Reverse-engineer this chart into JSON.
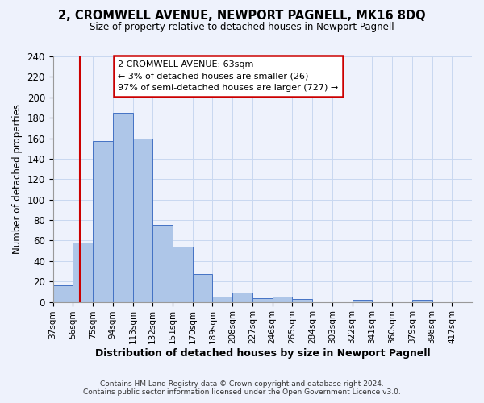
{
  "title": "2, CROMWELL AVENUE, NEWPORT PAGNELL, MK16 8DQ",
  "subtitle": "Size of property relative to detached houses in Newport Pagnell",
  "xlabel": "Distribution of detached houses by size in Newport Pagnell",
  "ylabel": "Number of detached properties",
  "bin_labels": [
    "37sqm",
    "56sqm",
    "75sqm",
    "94sqm",
    "113sqm",
    "132sqm",
    "151sqm",
    "170sqm",
    "189sqm",
    "208sqm",
    "227sqm",
    "246sqm",
    "265sqm",
    "284sqm",
    "303sqm",
    "322sqm",
    "341sqm",
    "360sqm",
    "379sqm",
    "398sqm",
    "417sqm"
  ],
  "bin_edges": [
    37,
    56,
    75,
    94,
    113,
    132,
    151,
    170,
    189,
    208,
    227,
    246,
    265,
    284,
    303,
    322,
    341,
    360,
    379,
    398,
    417
  ],
  "bar_heights": [
    16,
    58,
    157,
    185,
    160,
    75,
    54,
    27,
    5,
    9,
    4,
    5,
    3,
    0,
    0,
    2,
    0,
    0,
    2,
    0,
    0
  ],
  "bar_color": "#aec6e8",
  "bar_edge_color": "#4472c4",
  "grid_color": "#c8d8f0",
  "background_color": "#eef2fc",
  "red_line_x": 63,
  "annotation_title": "2 CROMWELL AVENUE: 63sqm",
  "annotation_line1": "← 3% of detached houses are smaller (26)",
  "annotation_line2": "97% of semi-detached houses are larger (727) →",
  "annotation_box_color": "#ffffff",
  "annotation_box_edge": "#cc0000",
  "ylim": [
    0,
    240
  ],
  "yticks": [
    0,
    20,
    40,
    60,
    80,
    100,
    120,
    140,
    160,
    180,
    200,
    220,
    240
  ],
  "footer1": "Contains HM Land Registry data © Crown copyright and database right 2024.",
  "footer2": "Contains public sector information licensed under the Open Government Licence v3.0."
}
